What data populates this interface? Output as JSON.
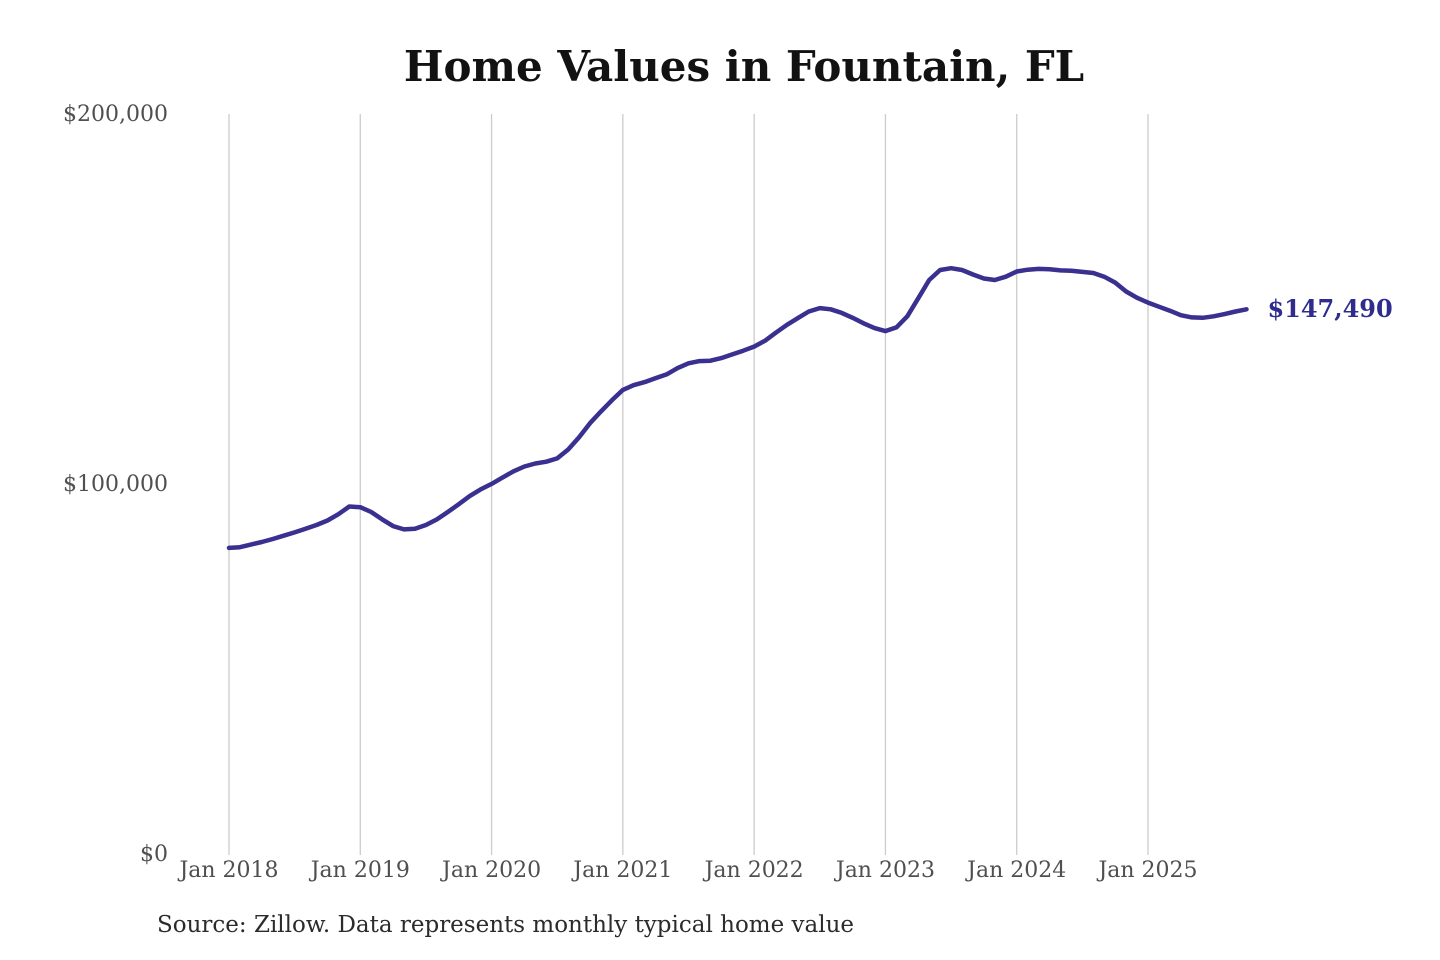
{
  "chart": {
    "title": "Home Values in Fountain, FL",
    "source": "Source: Zillow. Data represents monthly typical home value",
    "end_label": "$147,490"
  },
  "chart_data": {
    "type": "line",
    "title": "Home Values in Fountain, FL",
    "series_name": "Monthly typical home value",
    "x": [
      "2018-01",
      "2018-02",
      "2018-03",
      "2018-04",
      "2018-05",
      "2018-06",
      "2018-07",
      "2018-08",
      "2018-09",
      "2018-10",
      "2018-11",
      "2018-12",
      "2019-01",
      "2019-02",
      "2019-03",
      "2019-04",
      "2019-05",
      "2019-06",
      "2019-07",
      "2019-08",
      "2019-09",
      "2019-10",
      "2019-11",
      "2019-12",
      "2020-01",
      "2020-02",
      "2020-03",
      "2020-04",
      "2020-05",
      "2020-06",
      "2020-07",
      "2020-08",
      "2020-09",
      "2020-10",
      "2020-11",
      "2020-12",
      "2021-01",
      "2021-02",
      "2021-03",
      "2021-04",
      "2021-05",
      "2021-06",
      "2021-07",
      "2021-08",
      "2021-09",
      "2021-10",
      "2021-11",
      "2021-12",
      "2022-01",
      "2022-02",
      "2022-03",
      "2022-04",
      "2022-05",
      "2022-06",
      "2022-07",
      "2022-08",
      "2022-09",
      "2022-10",
      "2022-11",
      "2022-12",
      "2023-01",
      "2023-02",
      "2023-03",
      "2023-04",
      "2023-05",
      "2023-06",
      "2023-07",
      "2023-08",
      "2023-09",
      "2023-10",
      "2023-11",
      "2023-12",
      "2024-01",
      "2024-02",
      "2024-03",
      "2024-04",
      "2024-05",
      "2024-06",
      "2024-07",
      "2024-08",
      "2024-09",
      "2024-10",
      "2024-11",
      "2024-12",
      "2025-01",
      "2025-02",
      "2025-03",
      "2025-04",
      "2025-05",
      "2025-06",
      "2025-07",
      "2025-08",
      "2025-09",
      "2025-10"
    ],
    "values": [
      83000,
      83200,
      83900,
      84600,
      85400,
      86300,
      87200,
      88200,
      89200,
      90400,
      92100,
      94200,
      94000,
      92700,
      90700,
      88900,
      88000,
      88200,
      89200,
      90700,
      92700,
      94800,
      97000,
      98800,
      100300,
      102000,
      103700,
      105000,
      105800,
      106300,
      107200,
      109600,
      112900,
      116700,
      119900,
      122900,
      125700,
      127000,
      127800,
      128900,
      129900,
      131600,
      132900,
      133500,
      133600,
      134300,
      135300,
      136300,
      137400,
      139000,
      141200,
      143300,
      145100,
      146900,
      147800,
      147500,
      146500,
      145200,
      143700,
      142400,
      141600,
      142600,
      145600,
      150500,
      155400,
      158100,
      158600,
      158100,
      156900,
      155800,
      155400,
      156300,
      157700,
      158200,
      158400,
      158300,
      158000,
      157900,
      157600,
      157300,
      156300,
      154700,
      152300,
      150600,
      149300,
      148200,
      147100,
      145900,
      145300,
      145200,
      145600,
      146200,
      146900,
      147490
    ],
    "last_point_label": "$147,490",
    "last_point_value": 147490,
    "ylim": [
      0,
      200000
    ],
    "y_ticks": [
      {
        "value": 0,
        "label": "$0"
      },
      {
        "value": 100000,
        "label": "$100,000"
      },
      {
        "value": 200000,
        "label": "$200,000"
      }
    ],
    "x_ticks": [
      {
        "month_index": 0,
        "label": "Jan 2018"
      },
      {
        "month_index": 12,
        "label": "Jan 2019"
      },
      {
        "month_index": 24,
        "label": "Jan 2020"
      },
      {
        "month_index": 36,
        "label": "Jan 2021"
      },
      {
        "month_index": 48,
        "label": "Jan 2022"
      },
      {
        "month_index": 60,
        "label": "Jan 2023"
      },
      {
        "month_index": 72,
        "label": "Jan 2024"
      },
      {
        "month_index": 84,
        "label": "Jan 2025"
      }
    ],
    "grid": "vertical-only",
    "legend": "none",
    "colors": {
      "line": "#393090",
      "annotation": "#2f2c8d",
      "gridline": "#cccccc",
      "tick_text": "#4f4f4f",
      "title_text": "#121212",
      "source_text": "#2b2b2b",
      "background": "#ffffff"
    }
  }
}
